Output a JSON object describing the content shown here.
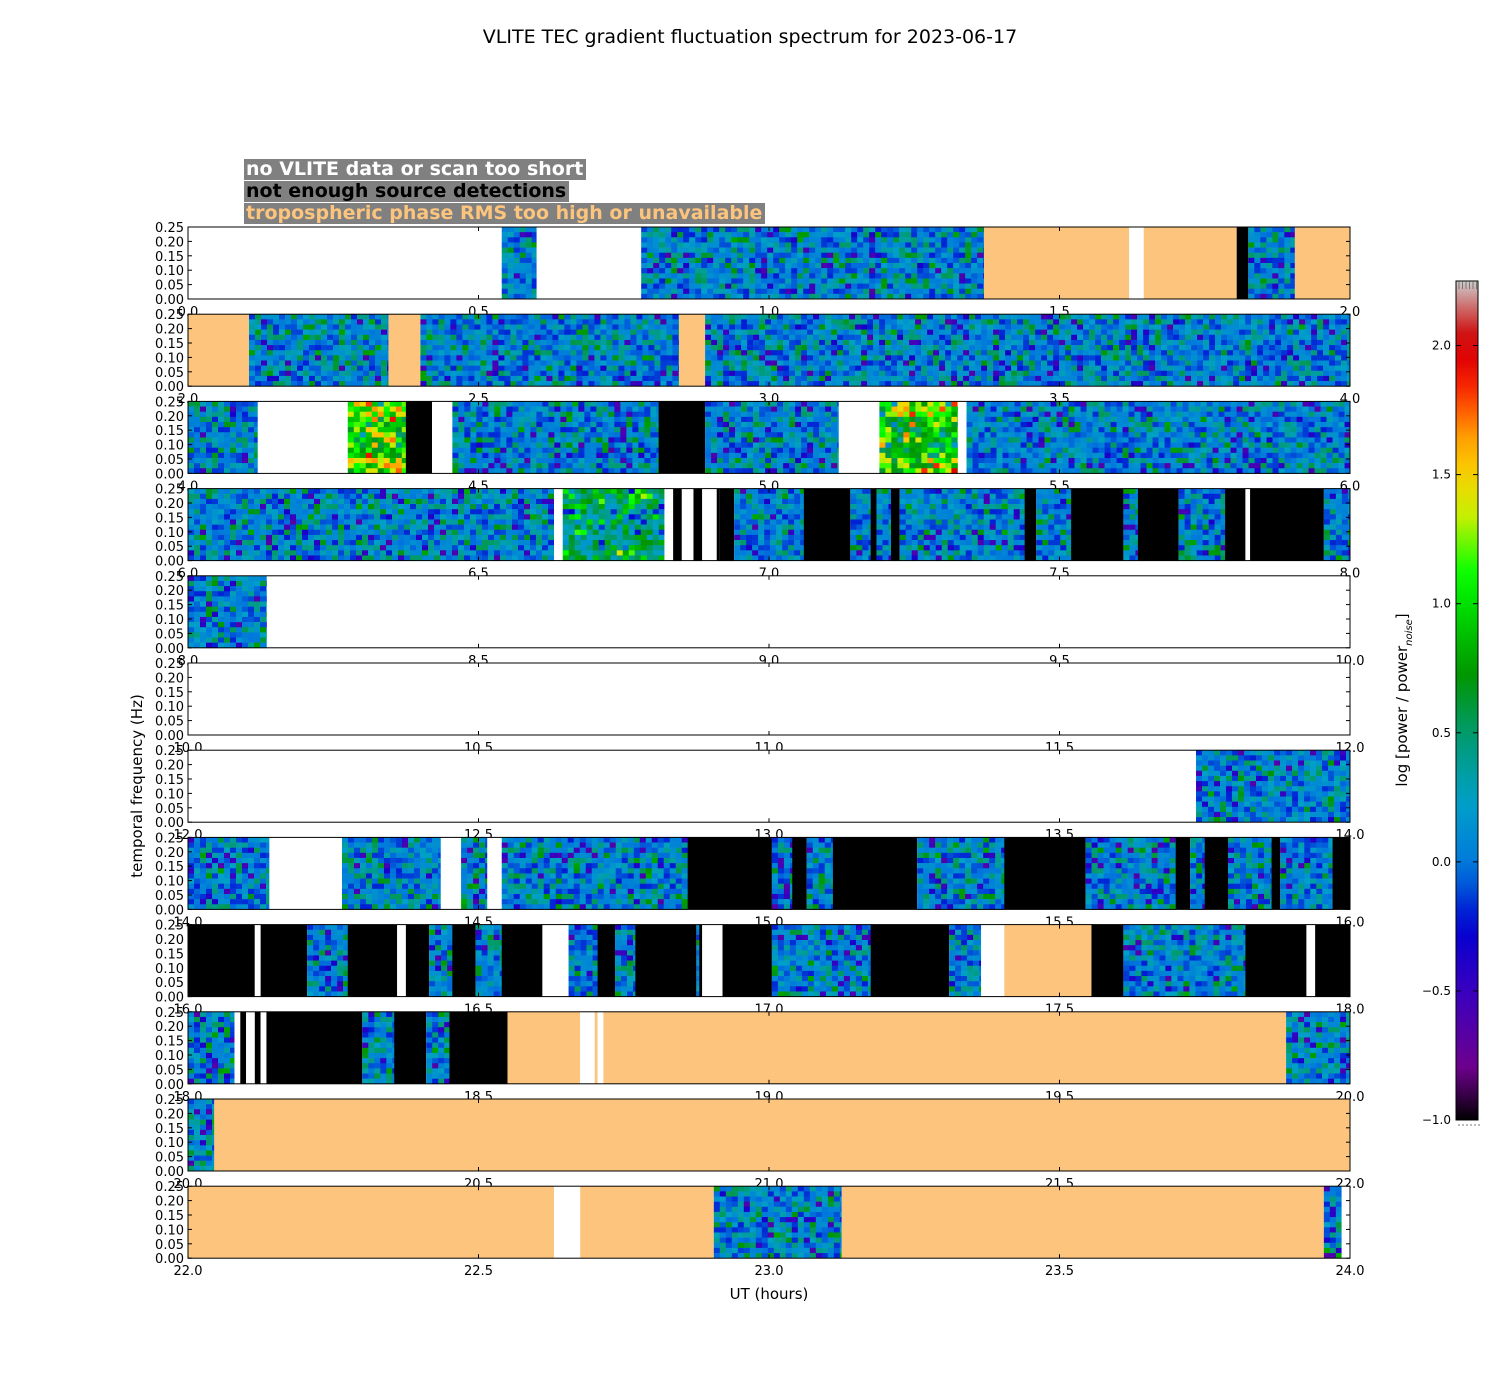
{
  "chart_data": {
    "type": "heatmap",
    "title": "VLITE TEC gradient fluctuation spectrum for 2023-06-17",
    "xlabel": "UT (hours)",
    "ylabel": "temporal frequency (Hz)",
    "colorbar_label": "log [power / power",
    "colorbar_label_subscript": "noise",
    "colorbar_label_close": "]",
    "colorbar_range": [
      -1.0,
      2.25
    ],
    "colorbar_ticks": [
      "2.0",
      "1.5",
      "1.0",
      "0.5",
      "0.0",
      "−0.5",
      "−1.0"
    ],
    "colormap": "spectral",
    "ylim": [
      0,
      0.25
    ],
    "yticks": [
      "0.00",
      "0.05",
      "0.10",
      "0.15",
      "0.20",
      "0.25"
    ],
    "legend": [
      {
        "label": "no VLITE data or scan too short",
        "color": "#ffffff",
        "box": "#808080"
      },
      {
        "label": "not enough source detections",
        "color": "#000000",
        "box": "#808080"
      },
      {
        "label": "tropospheric phase RMS too high or unavailable",
        "color": "#fdc47d",
        "box": "#808080"
      }
    ],
    "state_colors": {
      "white": "#ffffff",
      "black": "#000000",
      "tan": "#fdc47d"
    },
    "panels": [
      {
        "xlim": [
          0,
          2
        ],
        "xticks": [
          "0.0",
          "0.5",
          "1.0",
          "1.5",
          "2.0"
        ],
        "segments": [
          [
            0.54,
            0.6,
            "data"
          ],
          [
            0.6,
            0.78,
            "white"
          ],
          [
            0.78,
            1.37,
            "data"
          ],
          [
            1.37,
            1.62,
            "tan"
          ],
          [
            1.62,
            1.645,
            "white"
          ],
          [
            1.645,
            1.805,
            "tan"
          ],
          [
            1.805,
            1.825,
            "black"
          ],
          [
            1.825,
            1.905,
            "data"
          ],
          [
            1.905,
            2.0,
            "tan"
          ]
        ],
        "hot": [
          [
            0.59,
            0.22
          ],
          [
            0.86,
            0.18
          ],
          [
            0.79,
            0.1
          ]
        ]
      },
      {
        "xlim": [
          2,
          4
        ],
        "xticks": [
          "2.0",
          "2.5",
          "3.0",
          "3.5",
          "4.0"
        ],
        "segments": [
          [
            2.0,
            2.105,
            "tan"
          ],
          [
            2.105,
            2.345,
            "data"
          ],
          [
            2.345,
            2.4,
            "tan"
          ],
          [
            2.4,
            2.845,
            "data"
          ],
          [
            2.845,
            2.89,
            "tan"
          ],
          [
            2.89,
            4.0,
            "data"
          ]
        ],
        "hot": []
      },
      {
        "xlim": [
          4,
          6
        ],
        "xticks": [
          "4.0",
          "4.5",
          "5.0",
          "5.5",
          "6.0"
        ],
        "segments": [
          [
            4.0,
            4.12,
            "data"
          ],
          [
            4.12,
            4.275,
            "white"
          ],
          [
            4.275,
            4.375,
            "data"
          ],
          [
            4.375,
            4.42,
            "black"
          ],
          [
            4.42,
            4.455,
            "white"
          ],
          [
            4.455,
            4.81,
            "data"
          ],
          [
            4.81,
            4.89,
            "black"
          ],
          [
            4.89,
            5.12,
            "data"
          ],
          [
            5.12,
            5.19,
            "white"
          ],
          [
            5.19,
            5.325,
            "data"
          ],
          [
            5.325,
            5.34,
            "white"
          ],
          [
            5.34,
            6.0,
            "data"
          ]
        ],
        "hot": [
          [
            4.275,
            4.375,
            0.95
          ],
          [
            5.19,
            5.325,
            0.9
          ]
        ]
      },
      {
        "xlim": [
          6,
          8
        ],
        "xticks": [
          "6.0",
          "6.5",
          "7.0",
          "7.5",
          "8.0"
        ],
        "segments": [
          [
            6.0,
            6.63,
            "data"
          ],
          [
            6.63,
            6.645,
            "white"
          ],
          [
            6.645,
            6.82,
            "data"
          ],
          [
            6.82,
            6.835,
            "white"
          ],
          [
            6.835,
            6.85,
            "black"
          ],
          [
            6.85,
            6.87,
            "white"
          ],
          [
            6.87,
            6.885,
            "black"
          ],
          [
            6.885,
            6.91,
            "white"
          ],
          [
            6.91,
            6.915,
            "black"
          ],
          [
            6.915,
            6.94,
            "black"
          ],
          [
            6.94,
            7.06,
            "data"
          ],
          [
            7.06,
            7.14,
            "black"
          ],
          [
            7.14,
            7.175,
            "data"
          ],
          [
            7.175,
            7.185,
            "black"
          ],
          [
            7.185,
            7.21,
            "data"
          ],
          [
            7.21,
            7.225,
            "black"
          ],
          [
            7.225,
            7.44,
            "data"
          ],
          [
            7.44,
            7.46,
            "black"
          ],
          [
            7.46,
            7.52,
            "data"
          ],
          [
            7.52,
            7.61,
            "black"
          ],
          [
            7.61,
            7.635,
            "data"
          ],
          [
            7.635,
            7.705,
            "black"
          ],
          [
            7.705,
            7.785,
            "data"
          ],
          [
            7.785,
            7.82,
            "black"
          ],
          [
            7.82,
            7.828,
            "white"
          ],
          [
            7.828,
            7.955,
            "black"
          ],
          [
            7.955,
            8.0,
            "data"
          ]
        ],
        "hot": [
          [
            6.65,
            6.82,
            0.4
          ]
        ]
      },
      {
        "xlim": [
          8,
          10
        ],
        "xticks": [
          "8.0",
          "8.5",
          "9.0",
          "9.5",
          "10.0"
        ],
        "segments": [
          [
            8.0,
            8.135,
            "data"
          ]
        ],
        "hot": []
      },
      {
        "xlim": [
          10,
          12
        ],
        "xticks": [
          "10.0",
          "10.5",
          "11.0",
          "11.5",
          "12.0"
        ],
        "segments": [],
        "hot": []
      },
      {
        "xlim": [
          12,
          14
        ],
        "xticks": [
          "12.0",
          "12.5",
          "13.0",
          "13.5",
          "14.0"
        ],
        "segments": [
          [
            13.735,
            14.0,
            "data"
          ]
        ],
        "hot": []
      },
      {
        "xlim": [
          14,
          16
        ],
        "xticks": [
          "14.0",
          "14.5",
          "15.0",
          "15.5",
          "16.0"
        ],
        "segments": [
          [
            14.0,
            14.14,
            "data"
          ],
          [
            14.14,
            14.265,
            "white"
          ],
          [
            14.265,
            14.435,
            "data"
          ],
          [
            14.435,
            14.47,
            "white"
          ],
          [
            14.47,
            14.515,
            "data"
          ],
          [
            14.515,
            14.54,
            "white"
          ],
          [
            14.54,
            14.86,
            "data"
          ],
          [
            14.86,
            15.005,
            "black"
          ],
          [
            15.005,
            15.04,
            "data"
          ],
          [
            15.04,
            15.065,
            "black"
          ],
          [
            15.065,
            15.11,
            "data"
          ],
          [
            15.11,
            15.255,
            "black"
          ],
          [
            15.255,
            15.405,
            "data"
          ],
          [
            15.405,
            15.545,
            "black"
          ],
          [
            15.545,
            15.7,
            "data"
          ],
          [
            15.7,
            15.725,
            "black"
          ],
          [
            15.725,
            15.75,
            "data"
          ],
          [
            15.75,
            15.79,
            "black"
          ],
          [
            15.79,
            15.865,
            "data"
          ],
          [
            15.865,
            15.88,
            "black"
          ],
          [
            15.88,
            15.97,
            "data"
          ],
          [
            15.97,
            16.0,
            "black"
          ]
        ],
        "hot": []
      },
      {
        "xlim": [
          16,
          18
        ],
        "xticks": [
          "16.0",
          "16.5",
          "17.0",
          "17.5",
          "18.0"
        ],
        "segments": [
          [
            16.0,
            16.115,
            "black"
          ],
          [
            16.115,
            16.125,
            "white"
          ],
          [
            16.125,
            16.205,
            "black"
          ],
          [
            16.205,
            16.275,
            "data"
          ],
          [
            16.275,
            16.36,
            "black"
          ],
          [
            16.36,
            16.375,
            "white"
          ],
          [
            16.375,
            16.415,
            "black"
          ],
          [
            16.415,
            16.455,
            "data"
          ],
          [
            16.455,
            16.495,
            "black"
          ],
          [
            16.495,
            16.54,
            "data"
          ],
          [
            16.54,
            16.61,
            "black"
          ],
          [
            16.61,
            16.655,
            "white"
          ],
          [
            16.655,
            16.705,
            "data"
          ],
          [
            16.705,
            16.735,
            "black"
          ],
          [
            16.735,
            16.77,
            "data"
          ],
          [
            16.77,
            16.875,
            "black"
          ],
          [
            16.875,
            16.88,
            "data"
          ],
          [
            16.88,
            16.885,
            "black"
          ],
          [
            16.885,
            16.92,
            "white"
          ],
          [
            16.92,
            17.005,
            "black"
          ],
          [
            17.005,
            17.175,
            "data"
          ],
          [
            17.175,
            17.31,
            "black"
          ],
          [
            17.31,
            17.365,
            "data"
          ],
          [
            17.365,
            17.405,
            "white"
          ],
          [
            17.405,
            17.555,
            "tan"
          ],
          [
            17.555,
            17.61,
            "black"
          ],
          [
            17.61,
            17.82,
            "data"
          ],
          [
            17.82,
            17.925,
            "black"
          ],
          [
            17.925,
            17.94,
            "white"
          ],
          [
            17.94,
            18.0,
            "black"
          ]
        ],
        "hot": []
      },
      {
        "xlim": [
          18,
          20
        ],
        "xticks": [
          "18.0",
          "18.5",
          "19.0",
          "19.5",
          "20.0"
        ],
        "segments": [
          [
            18.0,
            18.08,
            "data"
          ],
          [
            18.08,
            18.09,
            "white"
          ],
          [
            18.09,
            18.1,
            "black"
          ],
          [
            18.1,
            18.115,
            "white"
          ],
          [
            18.115,
            18.125,
            "black"
          ],
          [
            18.125,
            18.135,
            "white"
          ],
          [
            18.135,
            18.3,
            "black"
          ],
          [
            18.3,
            18.355,
            "data"
          ],
          [
            18.355,
            18.41,
            "black"
          ],
          [
            18.41,
            18.45,
            "data"
          ],
          [
            18.45,
            18.55,
            "black"
          ],
          [
            18.55,
            18.675,
            "tan"
          ],
          [
            18.675,
            18.7,
            "white"
          ],
          [
            18.7,
            18.705,
            "tan"
          ],
          [
            18.705,
            18.715,
            "white"
          ],
          [
            18.715,
            19.89,
            "tan"
          ],
          [
            19.89,
            20.0,
            "data"
          ]
        ],
        "hot": []
      },
      {
        "xlim": [
          20,
          22
        ],
        "xticks": [
          "20.0",
          "20.5",
          "21.0",
          "21.5",
          "22.0"
        ],
        "segments": [
          [
            20.0,
            20.045,
            "data"
          ],
          [
            20.045,
            22.0,
            "tan"
          ]
        ],
        "hot": []
      },
      {
        "xlim": [
          22,
          24
        ],
        "xticks": [
          "22.0",
          "22.5",
          "23.0",
          "23.5",
          "24.0"
        ],
        "segments": [
          [
            22.0,
            22.63,
            "tan"
          ],
          [
            22.63,
            22.675,
            "white"
          ],
          [
            22.675,
            22.905,
            "tan"
          ],
          [
            22.905,
            23.125,
            "data"
          ],
          [
            23.125,
            23.955,
            "tan"
          ],
          [
            23.955,
            23.985,
            "data"
          ]
        ],
        "hot": []
      }
    ]
  }
}
